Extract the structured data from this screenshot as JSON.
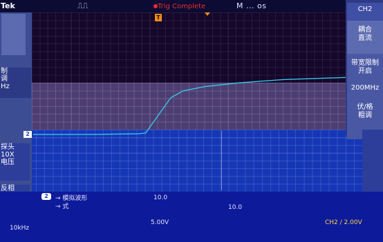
{
  "header": {
    "brand": "Tek",
    "run_indicator": "⎍⎍",
    "trigger_status": "Trig Complete",
    "timebase": "M ... os"
  },
  "left_menu": {
    "item1": "",
    "item2_line1": "制",
    "item2_line2": "调",
    "item2_line3": "Hz",
    "item3_line1": "探头",
    "item3_line2": "10X",
    "item3_line3": "电压",
    "item4": "反相",
    "bottom_hz": "10kHz"
  },
  "right_menu": {
    "title": "CH2",
    "coupling_line1": "耦合",
    "coupling_line2": "直流",
    "bandwidth_label": "带宽限制",
    "bandwidth_sub": "开启",
    "bandwidth_value": "200MHz",
    "volts_line1": "伏/格",
    "volts_line2": "粗调"
  },
  "markers": {
    "trigger": "T",
    "channel": "2"
  },
  "readout": {
    "ch_badge": "2",
    "line1": "→ 模拟波形",
    "line2": "→ 式",
    "val_a": "10.0",
    "val_b": "5.00V",
    "val_c": "10.0",
    "val_ch": "CH2 ∕ 2.00V"
  },
  "waveform": {
    "color": "#39c6e6",
    "points": [
      [
        0.0,
        0.97
      ],
      [
        0.2,
        0.97
      ],
      [
        0.34,
        0.96
      ],
      [
        0.36,
        0.95
      ],
      [
        0.4,
        0.7
      ],
      [
        0.44,
        0.45
      ],
      [
        0.48,
        0.35
      ],
      [
        0.55,
        0.29
      ],
      [
        0.65,
        0.24
      ],
      [
        0.8,
        0.19
      ],
      [
        1.0,
        0.16
      ]
    ]
  }
}
